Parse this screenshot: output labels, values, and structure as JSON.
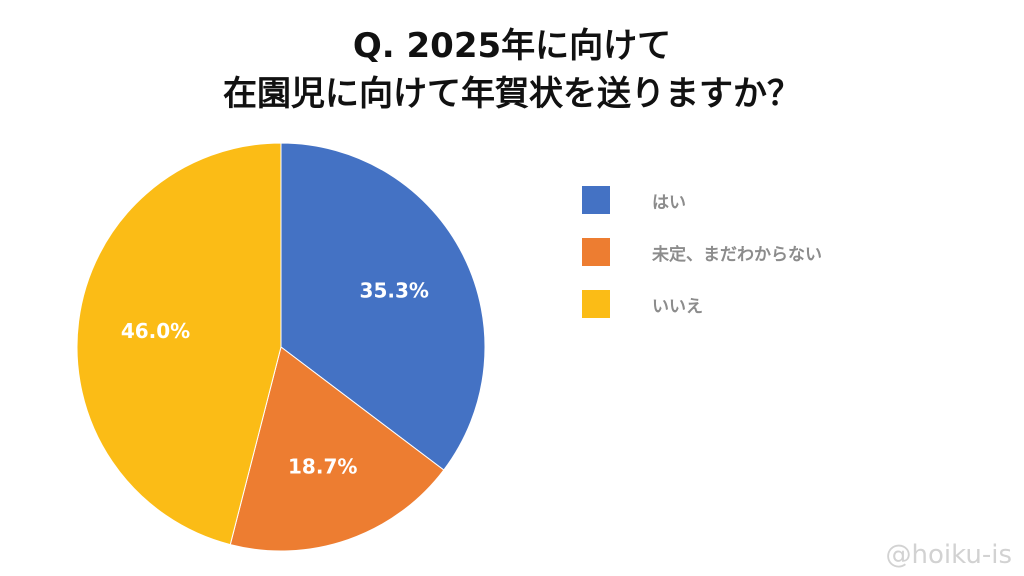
{
  "chart_data": {
    "type": "pie",
    "title_lines": [
      "Q. 2025年に向けて",
      "在園児に向けて年賀状を送りますか？"
    ],
    "slices": [
      {
        "label": "はい",
        "value": 35.3,
        "value_label": "35.3%",
        "color": "#4472C4"
      },
      {
        "label": "未定、まだわからない",
        "value": 18.7,
        "value_label": "18.7%",
        "color": "#ED7D31"
      },
      {
        "label": "いいえ",
        "value": 46.0,
        "value_label": "46.0%",
        "color": "#FBBC16"
      }
    ],
    "start_angle": "12 o'clock",
    "direction": "clockwise",
    "legend_position": "right"
  },
  "watermark": "@hoiku-is"
}
